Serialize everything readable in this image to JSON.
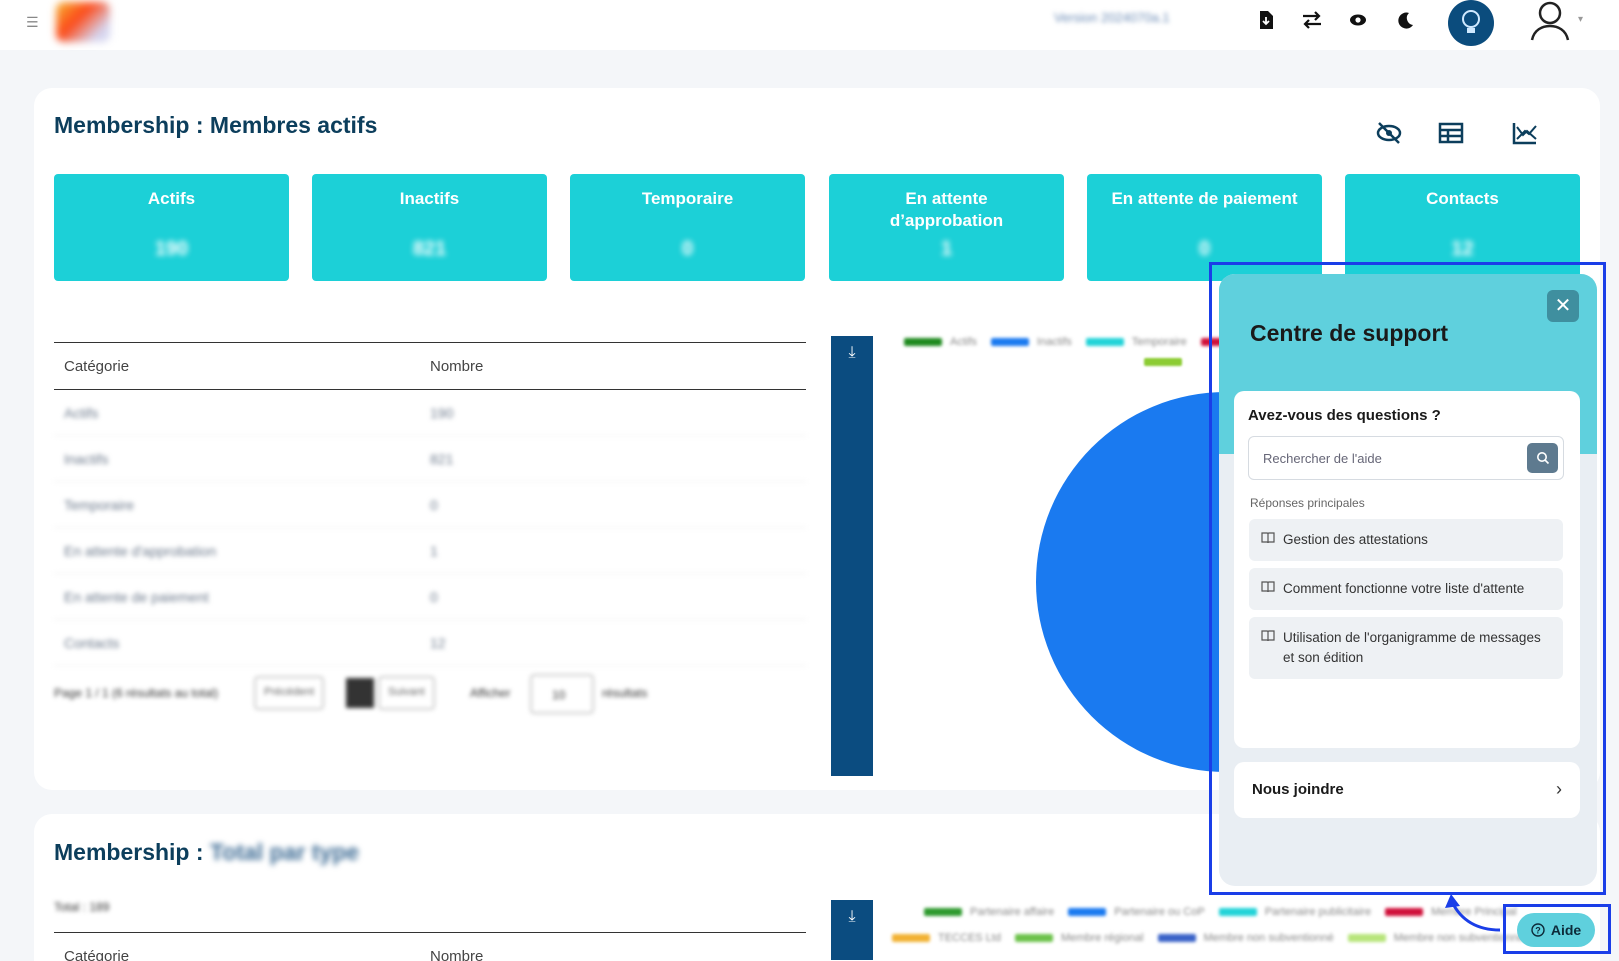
{
  "topbar": {
    "version_text": "Version 2024070a.1",
    "icons": [
      "menu-icon",
      "file-download-icon",
      "swap-icon",
      "eye-icon",
      "moon-icon",
      "lightbulb-badge-icon",
      "user-icon"
    ]
  },
  "card1": {
    "title": "Membership : Membres actifs",
    "tools": [
      "eye-off-icon",
      "table-icon",
      "chart-icon"
    ],
    "stats": [
      {
        "label": "Actifs",
        "value": "190"
      },
      {
        "label": "Inactifs",
        "value": "821"
      },
      {
        "label": "Temporaire",
        "value": "0"
      },
      {
        "label": "En attente d’approbation",
        "value": "1"
      },
      {
        "label": "En attente de paiement",
        "value": "0"
      },
      {
        "label": "Contacts",
        "value": "12"
      }
    ],
    "table": {
      "headers": [
        "Catégorie",
        "Nombre"
      ],
      "rows": [
        [
          "Actifs",
          "190"
        ],
        [
          "Inactifs",
          "821"
        ],
        [
          "Temporaire",
          "0"
        ],
        [
          "En attente d'approbation",
          "1"
        ],
        [
          "En attente de paiement",
          "0"
        ],
        [
          "Contacts",
          "12"
        ]
      ]
    },
    "pager": {
      "summary": "Page 1 / 1 (6 résultats au total)",
      "prev": "Précédent",
      "next": "Suivant",
      "show": "Afficher",
      "per_page": "10",
      "results": "résultats"
    },
    "legend": [
      "Actifs",
      "Inactifs",
      "Temporaire"
    ],
    "colors": {
      "actifs": "#1e8a1e",
      "inactifs": "#1a7af0",
      "temporaire": "#22d3d8",
      "attente": "#d0103a",
      "contacts": "#8ccc33"
    }
  },
  "card2": {
    "title_prefix": "Membership : ",
    "title_blurred": "Total par type",
    "total": "Total : 189",
    "headers": [
      "Catégorie",
      "Nombre"
    ],
    "legend": [
      "Partenaire affaire",
      "Partenaire ou CoP",
      "Partenaire publicitaire",
      "Membre Principal",
      "TECCES Ltd",
      "Membre régional",
      "Membre non subventionné",
      "Membre non subventionné"
    ]
  },
  "support": {
    "title": "Centre de support",
    "question": "Avez-vous des questions ?",
    "search_placeholder": "Rechercher de l'aide",
    "sub": "Réponses principales",
    "items": [
      "Gestion des attestations",
      "Comment fonctionne votre liste d'attente",
      "Utilisation de l'organigramme de messages et son édition"
    ],
    "join": "Nous joindre"
  },
  "aide": {
    "label": "Aide"
  }
}
